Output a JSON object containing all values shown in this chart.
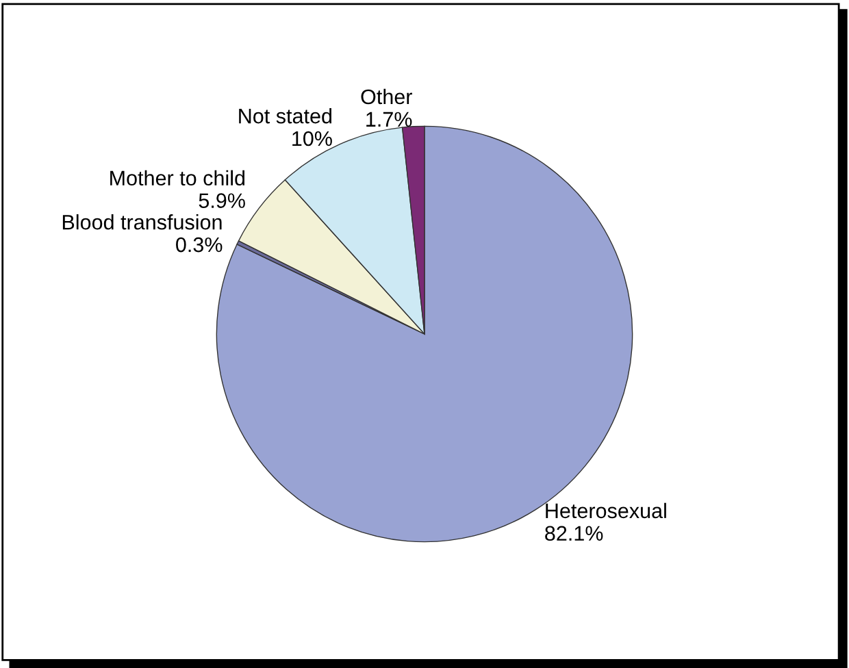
{
  "chart_data": {
    "type": "pie",
    "categories": [
      "Heterosexual",
      "Blood transfusion",
      "Mother to child",
      "Not stated",
      "Other"
    ],
    "values": [
      82.1,
      0.3,
      5.9,
      10,
      1.7
    ],
    "colors": [
      "#99a3d3",
      "#6b6b9a",
      "#f3f2d6",
      "#cde9f4",
      "#7b2a75"
    ],
    "value_labels": [
      "82.1%",
      "0.3%",
      "5.9%",
      "10%",
      "1.7%"
    ],
    "legend": false
  }
}
